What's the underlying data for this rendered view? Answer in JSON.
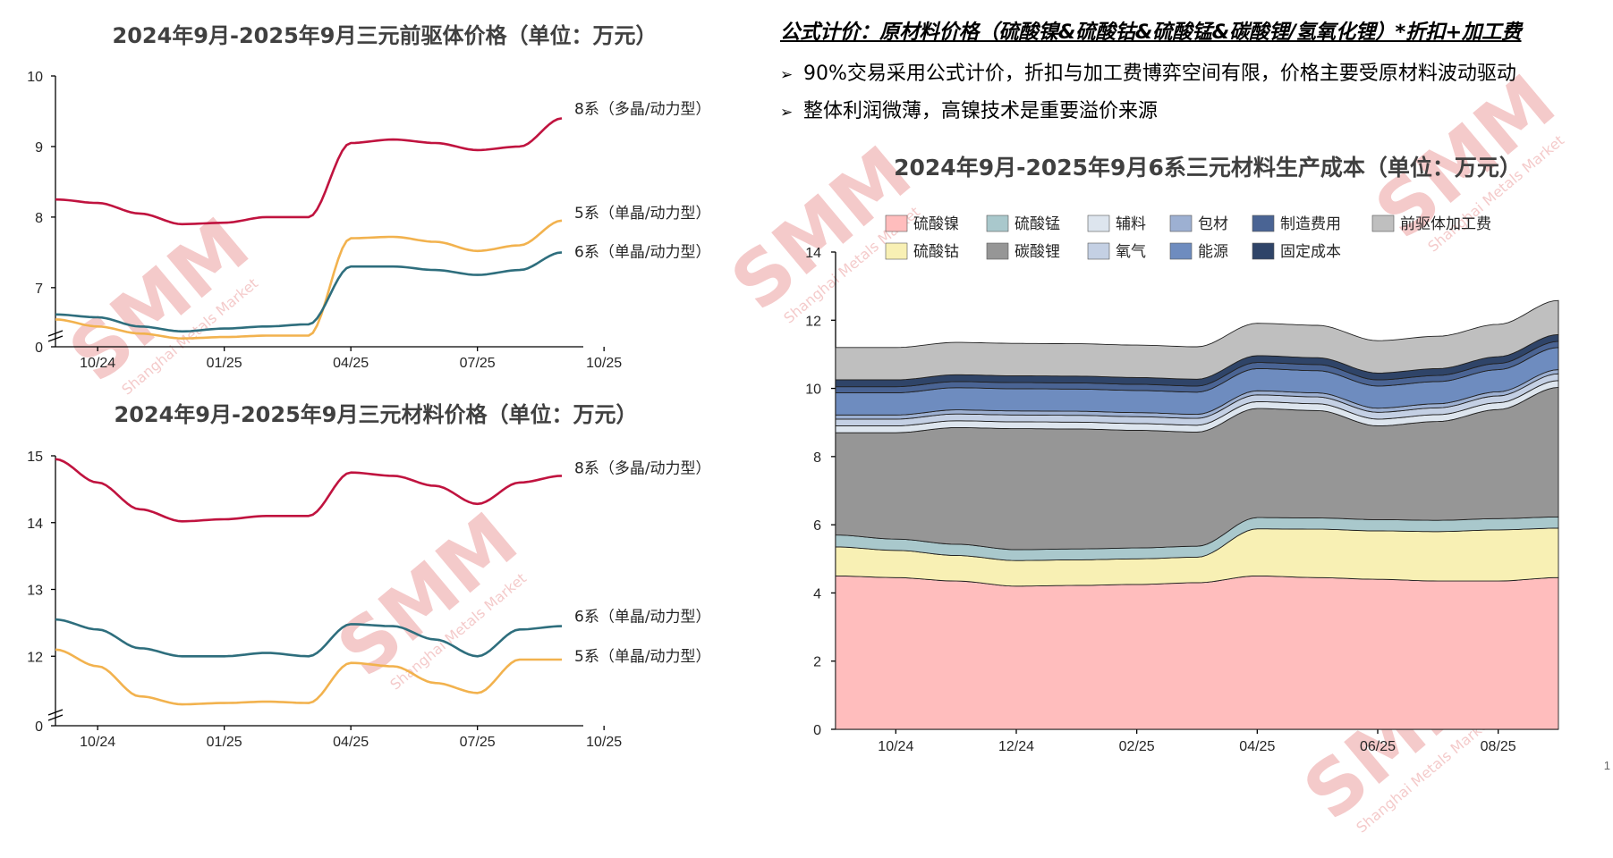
{
  "formula": {
    "heading": "公式计价：原材料价格（硫酸镍&硫酸钴&硫酸锰&碳酸锂/氢氧化锂）*折扣+加工费",
    "bullets": [
      "90%交易采用公式计价，折扣与加工费博弈空间有限，价格主要受原材料波动驱动",
      "整体利润微薄，高镍技术是重要溢价来源"
    ]
  },
  "page_number": "1",
  "watermark": {
    "brand": "SMM",
    "sub": "Shanghai Metals Market"
  },
  "colors": {
    "series_8": "#C0133F",
    "series_5": "#F2B24E",
    "series_6": "#2E6E7D"
  },
  "chart_data": [
    {
      "type": "line",
      "title": "2024年9月-2025年9月三元前驱体价格（单位：万元）",
      "x_ticks": [
        "10/24",
        "01/25",
        "04/25",
        "07/25",
        "10/25"
      ],
      "y_ticks": [
        "0",
        "7",
        "8",
        "9",
        "10"
      ],
      "ylim": [
        6.2,
        10
      ],
      "axis_break": true,
      "x": [
        "2024-09",
        "2024-10",
        "2024-11",
        "2024-12",
        "2025-01",
        "2025-02",
        "2025-03",
        "2025-04",
        "2025-05",
        "2025-06",
        "2025-07",
        "2025-08",
        "2025-09"
      ],
      "series": [
        {
          "name": "8系（多晶/动力型）",
          "color": "#C0133F",
          "values": [
            8.25,
            8.2,
            8.05,
            7.9,
            7.92,
            8.0,
            8.0,
            9.05,
            9.1,
            9.05,
            8.95,
            9.0,
            9.4
          ]
        },
        {
          "name": "5系（单晶/动力型）",
          "color": "#F2B24E",
          "values": [
            6.55,
            6.45,
            6.35,
            6.28,
            6.3,
            6.32,
            6.32,
            7.7,
            7.72,
            7.65,
            7.52,
            7.6,
            7.95
          ]
        },
        {
          "name": "6系（单晶/动力型）",
          "color": "#2E6E7D",
          "values": [
            6.62,
            6.58,
            6.45,
            6.38,
            6.42,
            6.45,
            6.48,
            7.3,
            7.3,
            7.25,
            7.18,
            7.25,
            7.5
          ]
        }
      ]
    },
    {
      "type": "line",
      "title": "2024年9月-2025年9月三元材料价格（单位：万元）",
      "x_ticks": [
        "10/24",
        "01/25",
        "04/25",
        "07/25",
        "10/25"
      ],
      "y_ticks": [
        "0",
        "12",
        "13",
        "14",
        "15"
      ],
      "ylim": [
        11.0,
        15
      ],
      "axis_break": true,
      "x": [
        "2024-09",
        "2024-10",
        "2024-11",
        "2024-12",
        "2025-01",
        "2025-02",
        "2025-03",
        "2025-04",
        "2025-05",
        "2025-06",
        "2025-07",
        "2025-08",
        "2025-09"
      ],
      "series": [
        {
          "name": "8系（多晶/动力型）",
          "color": "#C0133F",
          "values": [
            14.95,
            14.6,
            14.2,
            14.02,
            14.05,
            14.1,
            14.1,
            14.75,
            14.7,
            14.55,
            14.28,
            14.6,
            14.7
          ]
        },
        {
          "name": "6系（单晶/动力型）",
          "color": "#2E6E7D",
          "values": [
            12.55,
            12.4,
            12.12,
            12.0,
            12.0,
            12.05,
            12.0,
            12.48,
            12.45,
            12.25,
            12.0,
            12.4,
            12.45
          ]
        },
        {
          "name": "5系（单晶/动力型）",
          "color": "#F2B24E",
          "values": [
            12.1,
            11.85,
            11.4,
            11.28,
            11.3,
            11.32,
            11.3,
            11.9,
            11.85,
            11.6,
            11.45,
            11.95,
            11.95
          ]
        }
      ]
    },
    {
      "type": "area",
      "stacked": true,
      "title": "2024年9月-2025年9月6系三元材料生产成本（单位：万元）",
      "x_ticks": [
        "10/24",
        "12/24",
        "02/25",
        "04/25",
        "06/25",
        "08/25"
      ],
      "y_ticks": [
        "0",
        "2",
        "4",
        "6",
        "8",
        "10",
        "12",
        "14"
      ],
      "ylim": [
        0,
        14
      ],
      "x": [
        "2024-09",
        "2024-10",
        "2024-11",
        "2024-12",
        "2025-01",
        "2025-02",
        "2025-03",
        "2025-04",
        "2025-05",
        "2025-06",
        "2025-07",
        "2025-08",
        "2025-09"
      ],
      "legend_position": "top",
      "series": [
        {
          "name": "硫酸镍",
          "color": "#FFBDBD",
          "values": [
            4.5,
            4.45,
            4.35,
            4.2,
            4.22,
            4.25,
            4.3,
            4.5,
            4.45,
            4.4,
            4.35,
            4.35,
            4.45
          ]
        },
        {
          "name": "硫酸钴",
          "color": "#F8F0B4",
          "values": [
            0.85,
            0.8,
            0.75,
            0.75,
            0.75,
            0.75,
            0.75,
            1.38,
            1.42,
            1.42,
            1.45,
            1.5,
            1.45
          ]
        },
        {
          "name": "硫酸锰",
          "color": "#A9C8CC",
          "values": [
            0.35,
            0.33,
            0.33,
            0.32,
            0.32,
            0.32,
            0.32,
            0.33,
            0.33,
            0.33,
            0.33,
            0.33,
            0.33
          ]
        },
        {
          "name": "碳酸锂",
          "color": "#969696",
          "values": [
            3.0,
            3.12,
            3.42,
            3.55,
            3.52,
            3.45,
            3.35,
            3.2,
            3.15,
            2.75,
            2.9,
            3.2,
            3.8
          ]
        },
        {
          "name": "辅料",
          "color": "#DDE5EE",
          "values": [
            0.2,
            0.2,
            0.2,
            0.2,
            0.2,
            0.2,
            0.2,
            0.2,
            0.2,
            0.2,
            0.2,
            0.2,
            0.2
          ]
        },
        {
          "name": "氧气",
          "color": "#C4D0E4",
          "values": [
            0.2,
            0.2,
            0.2,
            0.2,
            0.2,
            0.2,
            0.2,
            0.2,
            0.2,
            0.2,
            0.2,
            0.2,
            0.2
          ]
        },
        {
          "name": "包材",
          "color": "#9DB0D2",
          "values": [
            0.12,
            0.12,
            0.12,
            0.12,
            0.12,
            0.12,
            0.12,
            0.12,
            0.12,
            0.12,
            0.12,
            0.12,
            0.12
          ]
        },
        {
          "name": "能源",
          "color": "#6E8CBF",
          "values": [
            0.65,
            0.65,
            0.65,
            0.65,
            0.65,
            0.65,
            0.65,
            0.65,
            0.65,
            0.65,
            0.65,
            0.65,
            0.65
          ]
        },
        {
          "name": "制造费用",
          "color": "#4A6494",
          "values": [
            0.18,
            0.18,
            0.18,
            0.18,
            0.18,
            0.18,
            0.18,
            0.18,
            0.18,
            0.18,
            0.18,
            0.18,
            0.18
          ]
        },
        {
          "name": "固定成本",
          "color": "#2F4468",
          "values": [
            0.2,
            0.2,
            0.2,
            0.2,
            0.2,
            0.2,
            0.2,
            0.2,
            0.2,
            0.2,
            0.2,
            0.2,
            0.2
          ]
        },
        {
          "name": "前驱体加工费",
          "color": "#BFBFBF",
          "values": [
            0.95,
            0.95,
            0.95,
            0.95,
            0.95,
            0.95,
            0.95,
            0.95,
            0.95,
            0.95,
            0.95,
            0.95,
            1.0
          ]
        }
      ]
    }
  ]
}
